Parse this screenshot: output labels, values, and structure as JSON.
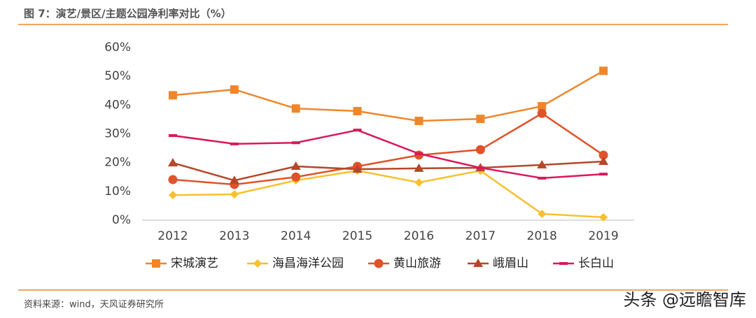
{
  "chart_data": {
    "type": "line",
    "title": "图 7：演艺/景区/主题公园净利率对比（%）",
    "categories": [
      "2012",
      "2013",
      "2014",
      "2015",
      "2016",
      "2017",
      "2018",
      "2019"
    ],
    "series": [
      {
        "name": "宋城演艺",
        "color": "#f0862a",
        "marker": "square",
        "values": [
          43.4,
          45.4,
          38.8,
          37.9,
          34.5,
          35.2,
          39.6,
          51.9
        ]
      },
      {
        "name": "海昌海洋公园",
        "color": "#f7c02e",
        "marker": "diamond",
        "values": [
          8.7,
          9.0,
          13.8,
          17.2,
          13.1,
          17.2,
          2.2,
          1.0
        ]
      },
      {
        "name": "黄山旅游",
        "color": "#e0522a",
        "marker": "circle",
        "values": [
          14.1,
          12.4,
          15.0,
          18.7,
          22.6,
          24.5,
          37.1,
          22.6
        ]
      },
      {
        "name": "峨眉山",
        "color": "#b5472a",
        "marker": "triangle",
        "values": [
          19.9,
          13.8,
          18.7,
          17.7,
          18.0,
          18.2,
          19.2,
          20.4
        ]
      },
      {
        "name": "长白山",
        "color": "#d9185c",
        "marker": "dash",
        "values": [
          29.4,
          26.5,
          26.9,
          31.3,
          23.1,
          18.2,
          14.6,
          16.0
        ]
      }
    ],
    "ylim": [
      0,
      60
    ],
    "yticks": [
      {
        "value": 0,
        "label": "0%"
      },
      {
        "value": 10,
        "label": "10%"
      },
      {
        "value": 20,
        "label": "20%"
      },
      {
        "value": 30,
        "label": "30%"
      },
      {
        "value": 40,
        "label": "40%"
      },
      {
        "value": 50,
        "label": "50%"
      },
      {
        "value": 60,
        "label": "60%"
      }
    ],
    "grid": false,
    "legend": "bottom"
  },
  "footer": {
    "source": "资料来源：wind，天风证券研究所",
    "watermark": "头条 @远瞻智库"
  }
}
